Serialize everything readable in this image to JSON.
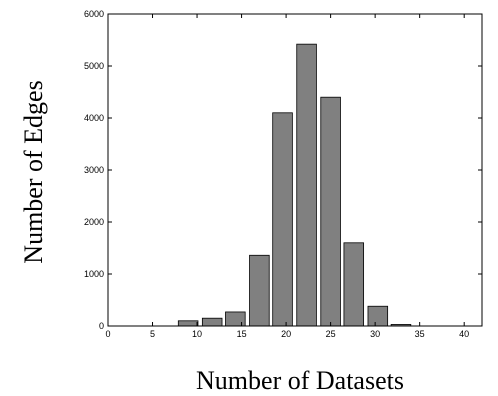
{
  "chart_data": {
    "type": "bar",
    "xlabel": "Number of Datasets",
    "ylabel": "Number of Edges",
    "xlim": [
      0,
      42
    ],
    "ylim": [
      0,
      6000
    ],
    "x_ticks": [
      "0",
      "5",
      "10",
      "15",
      "20",
      "25",
      "30",
      "35",
      "40"
    ],
    "y_ticks": [
      "0",
      "1000",
      "2000",
      "3000",
      "4000",
      "5000",
      "6000"
    ],
    "bin_width": 2.65,
    "bar_color": "#808080",
    "grid": false,
    "legend": "none",
    "series": [
      {
        "x": [
          9,
          11.7,
          14.3,
          17,
          19.6,
          22.3,
          25,
          27.6,
          30.3,
          32.9,
          35.6
        ],
        "values": [
          100,
          150,
          270,
          1360,
          4100,
          5420,
          4400,
          1600,
          380,
          30,
          0
        ]
      }
    ]
  }
}
